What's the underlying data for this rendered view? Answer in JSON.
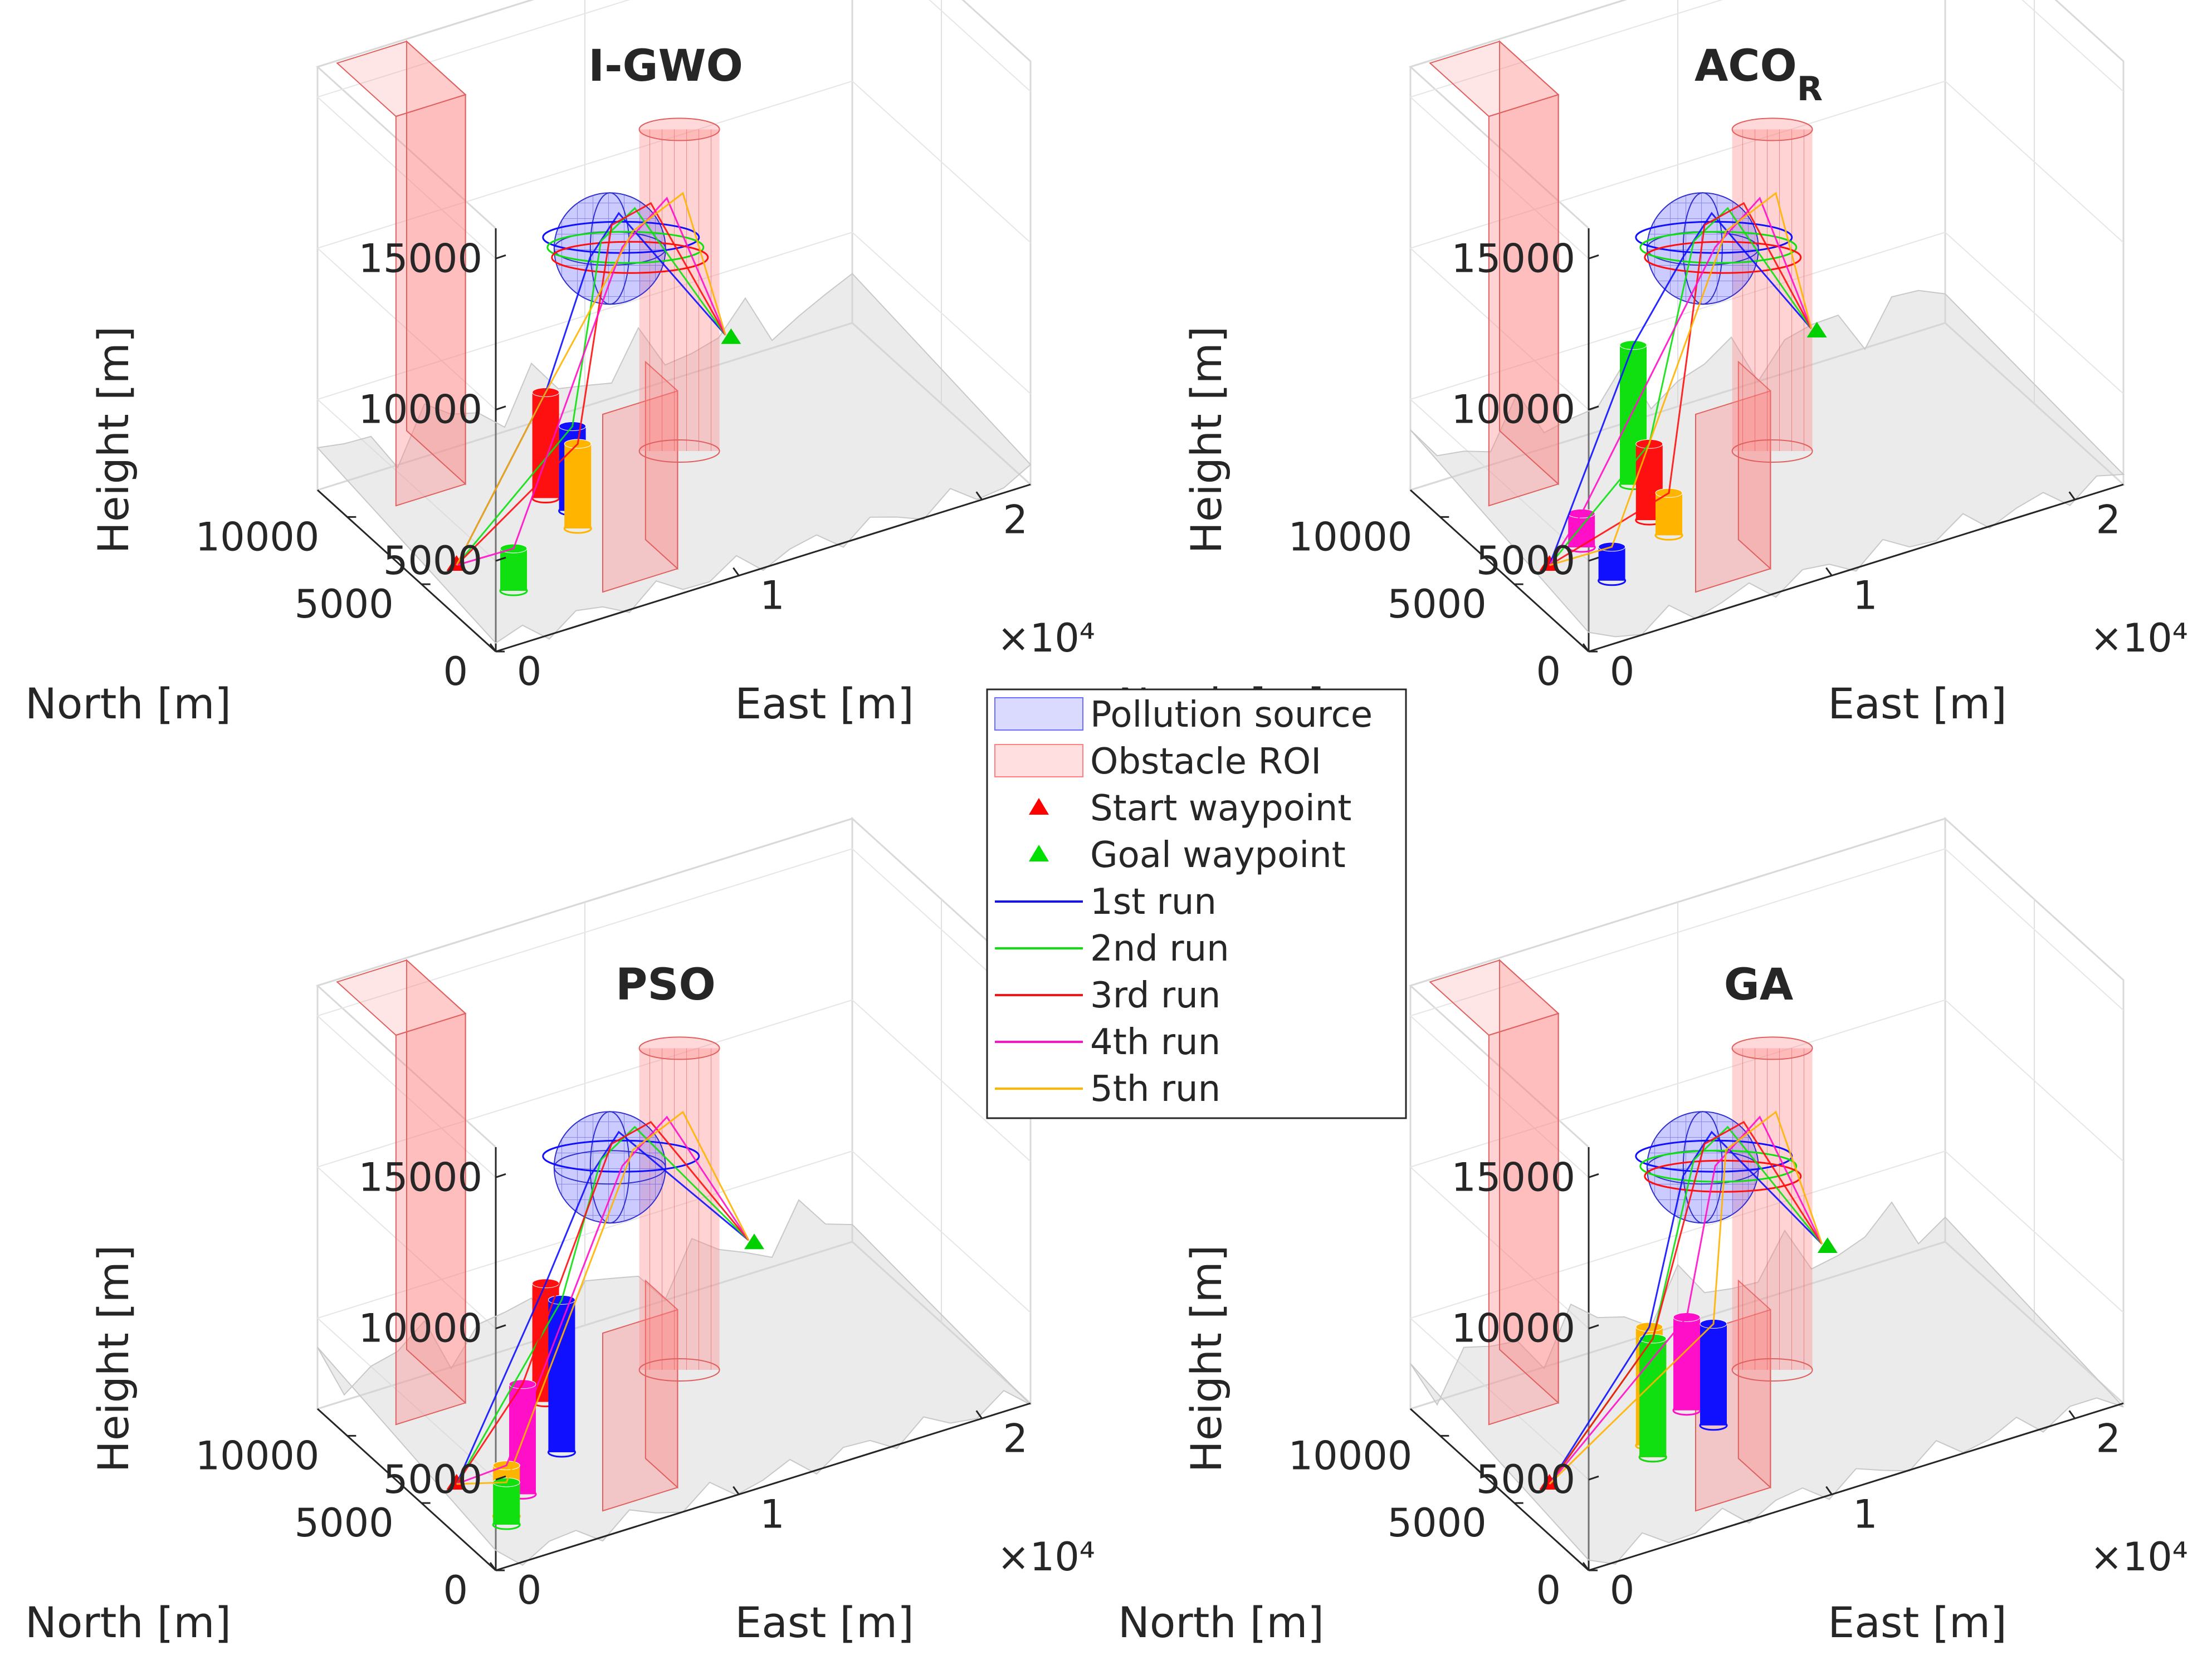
{
  "chart_data": {
    "type": "line",
    "legend": {
      "location": "center",
      "entries": [
        {
          "label": "Pollution source",
          "kind": "patch",
          "color": "#6b6bff"
        },
        {
          "label": "Obstacle ROI",
          "kind": "patch",
          "color": "#ff8080"
        },
        {
          "label": "Start waypoint",
          "kind": "marker",
          "color": "#ff0000"
        },
        {
          "label": "Goal waypoint",
          "kind": "marker",
          "color": "#00e000"
        },
        {
          "label": "1st run",
          "kind": "line",
          "color": "#1010ff"
        },
        {
          "label": "2nd run",
          "kind": "line",
          "color": "#10e010"
        },
        {
          "label": "3rd run",
          "kind": "line",
          "color": "#ff1010"
        },
        {
          "label": "4th run",
          "kind": "line",
          "color": "#ff10c8"
        },
        {
          "label": "5th run",
          "kind": "line",
          "color": "#ffb400"
        }
      ]
    },
    "colors": {
      "pollution": "#6b6bff",
      "obstacle": "#ff8080",
      "terrain": "#d2d2d2",
      "run1": "#1010ff",
      "run2": "#10e010",
      "run3": "#ff1010",
      "run4": "#ff10c8",
      "run5": "#ffb400"
    },
    "subplots": [
      {
        "title": "I-GWO",
        "sub": "",
        "xlabel": "East [m]",
        "ylabel": "North [m]",
        "zlabel": "Height [m]",
        "xticks": [
          "0",
          "1",
          "2"
        ],
        "x_exponent": "×10⁴",
        "yticks": [
          "0",
          "5000",
          "10000"
        ],
        "zticks": [
          "5000",
          "10000",
          "15000"
        ],
        "xlim": [
          0,
          22000
        ],
        "ylim": [
          0,
          12000
        ],
        "zlim": [
          2000,
          16000
        ]
      },
      {
        "title": "ACO",
        "sub": "R",
        "xlabel": "East [m]",
        "ylabel": "North [m]",
        "zlabel": "Height [m]",
        "xticks": [
          "0",
          "1",
          "2"
        ],
        "x_exponent": "×10⁴",
        "yticks": [
          "0",
          "5000",
          "10000"
        ],
        "zticks": [
          "5000",
          "10000",
          "15000"
        ],
        "xlim": [
          0,
          22000
        ],
        "ylim": [
          0,
          12000
        ],
        "zlim": [
          2000,
          16000
        ]
      },
      {
        "title": "PSO",
        "sub": "",
        "xlabel": "East [m]",
        "ylabel": "North [m]",
        "zlabel": "Height [m]",
        "xticks": [
          "0",
          "1",
          "2"
        ],
        "x_exponent": "×10⁴",
        "yticks": [
          "0",
          "5000",
          "10000"
        ],
        "zticks": [
          "5000",
          "10000",
          "15000"
        ],
        "xlim": [
          0,
          22000
        ],
        "ylim": [
          0,
          12000
        ],
        "zlim": [
          2000,
          16000
        ]
      },
      {
        "title": "GA",
        "sub": "",
        "xlabel": "East [m]",
        "ylabel": "North [m]",
        "zlabel": "Height [m]",
        "xticks": [
          "0",
          "1",
          "2"
        ],
        "x_exponent": "×10⁴",
        "yticks": [
          "0",
          "5000",
          "10000"
        ],
        "zticks": [
          "5000",
          "10000",
          "15000"
        ],
        "xlim": [
          0,
          22000
        ],
        "ylim": [
          0,
          12000
        ],
        "zlim": [
          2000,
          16000
        ]
      }
    ]
  }
}
